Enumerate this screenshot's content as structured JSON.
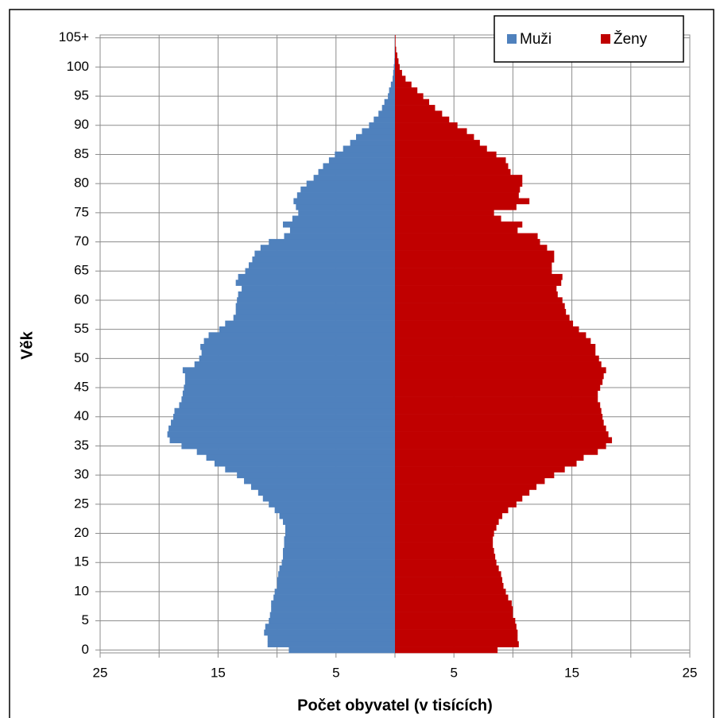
{
  "chart_data": {
    "type": "pyramid",
    "xlabel": "Počet obyvatel (v tisících)",
    "ylabel": "Věk",
    "categories": [
      "0",
      null,
      null,
      null,
      null,
      "5",
      null,
      null,
      null,
      null,
      "10",
      null,
      null,
      null,
      null,
      "15",
      null,
      null,
      null,
      null,
      "20",
      null,
      null,
      null,
      null,
      "25",
      null,
      null,
      null,
      null,
      "30",
      null,
      null,
      null,
      null,
      "35",
      null,
      null,
      null,
      null,
      "40",
      null,
      null,
      null,
      null,
      "45",
      null,
      null,
      null,
      null,
      "50",
      null,
      null,
      null,
      null,
      "55",
      null,
      null,
      null,
      null,
      "60",
      null,
      null,
      null,
      null,
      "65",
      null,
      null,
      null,
      null,
      "70",
      null,
      null,
      null,
      null,
      "75",
      null,
      null,
      null,
      null,
      "80",
      null,
      null,
      null,
      null,
      "85",
      null,
      null,
      null,
      null,
      "90",
      null,
      null,
      null,
      null,
      "95",
      null,
      null,
      null,
      null,
      "100",
      null,
      null,
      null,
      null,
      "105+"
    ],
    "xlim": [
      -25,
      25
    ],
    "xticks": [
      {
        "value": -25,
        "label": "25"
      },
      {
        "value": -15,
        "label": "15"
      },
      {
        "value": -5,
        "label": "5"
      },
      5,
      15,
      25
    ],
    "xgrid_extra": [
      -20,
      -10,
      0,
      10,
      20
    ],
    "grid": true,
    "legend": "top-right",
    "series": [
      {
        "name": "Muži",
        "color": "#4f81bd",
        "side": "left",
        "values": [
          9.0,
          10.8,
          10.8,
          11.1,
          11.0,
          10.7,
          10.6,
          10.5,
          10.5,
          10.3,
          10.2,
          10.0,
          10.0,
          9.9,
          9.8,
          9.6,
          9.5,
          9.5,
          9.4,
          9.4,
          9.3,
          9.3,
          9.5,
          9.8,
          10.2,
          10.7,
          11.2,
          11.6,
          12.2,
          12.8,
          13.4,
          14.4,
          15.3,
          16.0,
          16.8,
          18.1,
          19.1,
          19.3,
          19.2,
          19.0,
          18.8,
          18.7,
          18.3,
          18.1,
          18.0,
          17.9,
          17.8,
          17.8,
          18.0,
          17.0,
          16.6,
          16.4,
          16.5,
          16.2,
          15.8,
          14.9,
          14.4,
          13.7,
          13.5,
          13.5,
          13.4,
          13.3,
          13.0,
          13.5,
          13.3,
          12.7,
          12.4,
          12.1,
          11.9,
          11.4,
          10.7,
          9.4,
          8.9,
          9.5,
          8.7,
          8.2,
          8.4,
          8.6,
          8.3,
          8.0,
          7.5,
          6.9,
          6.5,
          6.1,
          5.6,
          5.1,
          4.4,
          3.8,
          3.3,
          2.8,
          2.2,
          1.8,
          1.4,
          1.1,
          0.9,
          0.6,
          0.5,
          0.35,
          0.2,
          0.15,
          0.1,
          0.05,
          0.03,
          0.02,
          0.01,
          0.01
        ]
      },
      {
        "name": "Ženy",
        "color": "#c00000",
        "side": "right",
        "values": [
          8.7,
          10.5,
          10.4,
          10.4,
          10.3,
          10.2,
          10.0,
          10.0,
          9.9,
          9.6,
          9.4,
          9.2,
          9.1,
          9.0,
          8.8,
          8.6,
          8.5,
          8.4,
          8.3,
          8.3,
          8.4,
          8.6,
          8.8,
          9.1,
          9.6,
          10.3,
          10.8,
          11.4,
          12.0,
          12.7,
          13.5,
          14.4,
          15.4,
          16.0,
          17.2,
          17.9,
          18.4,
          18.1,
          17.9,
          17.7,
          17.6,
          17.5,
          17.4,
          17.2,
          17.2,
          17.4,
          17.6,
          17.7,
          17.9,
          17.5,
          17.3,
          17.0,
          17.0,
          16.6,
          16.2,
          15.6,
          15.1,
          14.8,
          14.5,
          14.4,
          14.2,
          13.8,
          13.7,
          14.1,
          14.2,
          13.3,
          13.3,
          13.5,
          13.5,
          12.9,
          12.3,
          12.1,
          10.4,
          10.8,
          9.0,
          8.4,
          10.3,
          11.4,
          10.5,
          10.6,
          10.8,
          10.8,
          9.8,
          9.6,
          9.4,
          8.6,
          7.8,
          7.2,
          6.7,
          6.1,
          5.3,
          4.6,
          4.0,
          3.4,
          2.9,
          2.4,
          1.9,
          1.4,
          0.9,
          0.6,
          0.4,
          0.3,
          0.2,
          0.1,
          0.05,
          0.05
        ]
      }
    ]
  }
}
